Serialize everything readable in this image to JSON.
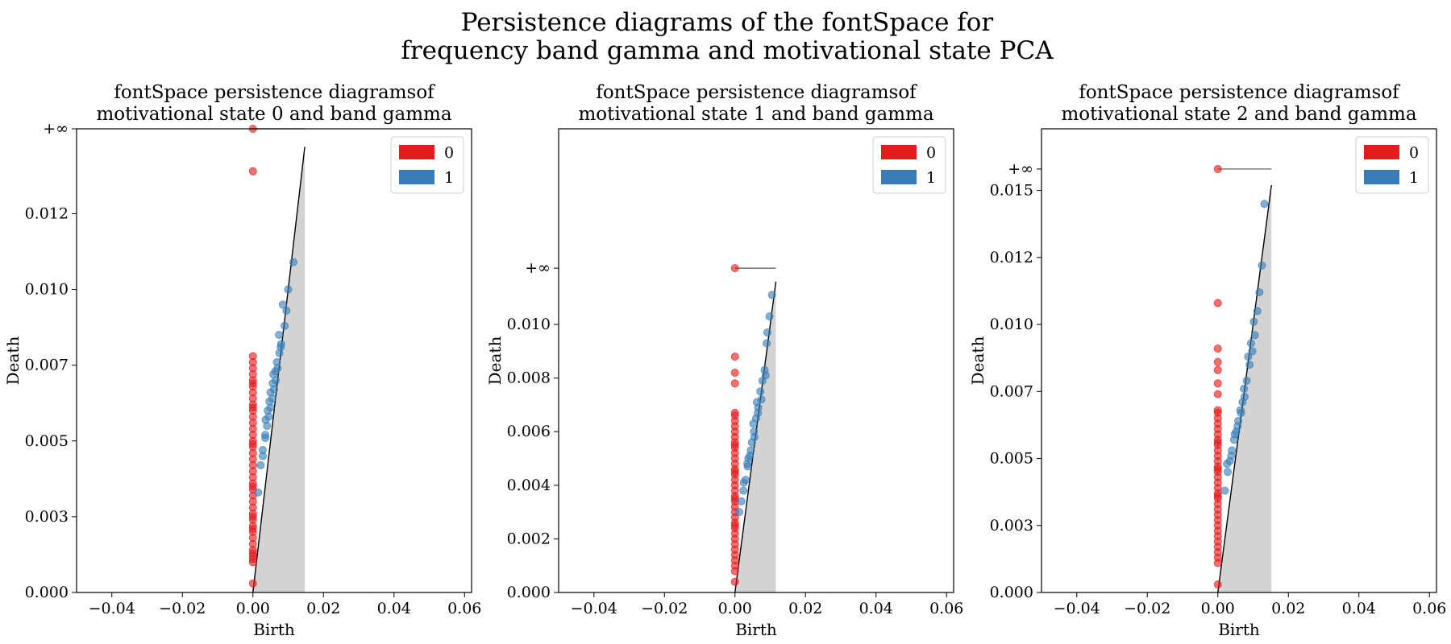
{
  "figure": {
    "title_line1": "Persistence diagrams of the fontSpace for",
    "title_line2": "frequency band gamma and motivational state PCA"
  },
  "colors": {
    "dim0": "#e41a1c",
    "dim1": "#377eb8",
    "diagonal_fill": "#d3d3d3",
    "diagonal_line": "#000000",
    "inf_line": "#555555"
  },
  "chart_data": [
    {
      "type": "scatter",
      "title_line1": "fontSpace persistence diagramsof",
      "title_line2": "motivational state 0 and band gamma",
      "xlabel": "Birth",
      "ylabel": "Death",
      "xlim": [
        -0.05,
        0.062
      ],
      "ylim": [
        0,
        0.0153
      ],
      "x_ticks": [
        -0.04,
        -0.02,
        0.0,
        0.02,
        0.04,
        0.06
      ],
      "x_tick_labels": [
        "−0.04",
        "−0.02",
        "0.00",
        "0.02",
        "0.04",
        "0.06"
      ],
      "y_ticks": [
        0.0,
        0.0025,
        0.005,
        0.0075,
        0.01,
        0.0125
      ],
      "y_tick_labels": [
        "0.000",
        "0.003",
        "0.005",
        "0.007",
        "0.010",
        "0.012"
      ],
      "inf_label": "+∞",
      "inf_value": 0.0153,
      "diag_max": 0.0147,
      "legend": {
        "placement": "top-right",
        "labels": [
          "0",
          "1"
        ]
      },
      "series": [
        {
          "name": "0",
          "x": [
            0,
            0,
            0,
            0,
            0,
            0,
            0,
            0,
            0,
            0,
            0,
            0,
            0,
            0,
            0,
            0,
            0,
            0,
            0,
            0,
            0,
            0,
            0,
            0,
            0,
            0,
            0,
            0,
            0,
            0,
            0,
            0,
            0,
            0,
            0,
            0,
            0,
            0,
            0,
            0,
            0,
            0,
            0,
            0,
            0,
            0
          ],
          "y": [
            0.0003,
            0.001,
            0.0011,
            0.0012,
            0.0014,
            0.0016,
            0.0018,
            0.002,
            0.0022,
            0.0024,
            0.0026,
            0.0028,
            0.003,
            0.0032,
            0.0034,
            0.0036,
            0.0038,
            0.004,
            0.0042,
            0.0044,
            0.0046,
            0.0048,
            0.005,
            0.0052,
            0.0054,
            0.0056,
            0.0058,
            0.006,
            0.0062,
            0.0064,
            0.0066,
            0.0068,
            0.007,
            0.0072,
            0.0074,
            0.0076,
            0.0078,
            0.0013,
            0.0021,
            0.0035,
            0.0049,
            0.0061,
            0.0069,
            0.0139,
            0.0153,
            0.0025
          ]
        },
        {
          "name": "1",
          "x": [
            0.0015,
            0.0022,
            0.0028,
            0.0035,
            0.004,
            0.0045,
            0.005,
            0.0055,
            0.006,
            0.0065,
            0.007,
            0.0075,
            0.008,
            0.0035,
            0.0042,
            0.005,
            0.0058,
            0.0068,
            0.0074,
            0.0085,
            0.0095,
            0.01,
            0.0115,
            0.0028,
            0.0036,
            0.0047,
            0.0056,
            0.0064,
            0.0079,
            0.009
          ],
          "y": [
            0.0033,
            0.0042,
            0.0047,
            0.0052,
            0.0055,
            0.0058,
            0.0061,
            0.0064,
            0.0067,
            0.007,
            0.0074,
            0.0079,
            0.0082,
            0.0051,
            0.006,
            0.0066,
            0.0072,
            0.0076,
            0.0085,
            0.0095,
            0.0093,
            0.01,
            0.0109,
            0.0045,
            0.0057,
            0.0063,
            0.0069,
            0.0073,
            0.0081,
            0.0088
          ]
        }
      ]
    },
    {
      "type": "scatter",
      "title_line1": "fontSpace persistence diagramsof",
      "title_line2": "motivational state 1 and band gamma",
      "xlabel": "Birth",
      "ylabel": "Death",
      "xlim": [
        -0.05,
        0.062
      ],
      "ylim": [
        0,
        0.0173
      ],
      "x_ticks": [
        -0.04,
        -0.02,
        0.0,
        0.02,
        0.04,
        0.06
      ],
      "x_tick_labels": [
        "−0.04",
        "−0.02",
        "0.00",
        "0.02",
        "0.04",
        "0.06"
      ],
      "y_ticks": [
        0.0,
        0.002,
        0.004,
        0.006,
        0.008,
        0.01
      ],
      "y_tick_labels": [
        "0.000",
        "0.002",
        "0.004",
        "0.006",
        "0.008",
        "0.010"
      ],
      "inf_label": "+∞",
      "inf_value": 0.0121,
      "diag_max": 0.0116,
      "legend": {
        "placement": "top-right",
        "labels": [
          "0",
          "1"
        ]
      },
      "series": [
        {
          "name": "0",
          "x": [
            0,
            0,
            0,
            0,
            0,
            0,
            0,
            0,
            0,
            0,
            0,
            0,
            0,
            0,
            0,
            0,
            0,
            0,
            0,
            0,
            0,
            0,
            0,
            0,
            0,
            0,
            0,
            0,
            0,
            0,
            0,
            0,
            0,
            0,
            0,
            0,
            0,
            0,
            0,
            0
          ],
          "y": [
            0.0004,
            0.0008,
            0.001,
            0.0012,
            0.0014,
            0.0016,
            0.0018,
            0.002,
            0.0022,
            0.0024,
            0.0026,
            0.0028,
            0.003,
            0.0032,
            0.0034,
            0.0036,
            0.0038,
            0.004,
            0.0042,
            0.0044,
            0.0046,
            0.0048,
            0.005,
            0.0052,
            0.0054,
            0.0056,
            0.0058,
            0.006,
            0.0062,
            0.0064,
            0.0066,
            0.0067,
            0.0078,
            0.0082,
            0.0088,
            0.0121,
            0.0025,
            0.0035,
            0.0045,
            0.0055
          ]
        },
        {
          "name": "1",
          "x": [
            0.0012,
            0.0018,
            0.0024,
            0.003,
            0.0036,
            0.0042,
            0.0048,
            0.0054,
            0.006,
            0.0066,
            0.0072,
            0.0078,
            0.0084,
            0.009,
            0.0098,
            0.0105,
            0.0092,
            0.0025,
            0.0035,
            0.0045,
            0.0055,
            0.0065,
            0.0075,
            0.0087,
            0.0038,
            0.0052,
            0.0062
          ],
          "y": [
            0.003,
            0.0034,
            0.0038,
            0.0042,
            0.0047,
            0.0051,
            0.0056,
            0.006,
            0.0065,
            0.0069,
            0.0075,
            0.0079,
            0.0083,
            0.0093,
            0.0103,
            0.0111,
            0.0097,
            0.0041,
            0.0048,
            0.0053,
            0.0058,
            0.0067,
            0.0072,
            0.0081,
            0.005,
            0.0063,
            0.0071
          ]
        }
      ]
    },
    {
      "type": "scatter",
      "title_line1": "fontSpace persistence diagramsof",
      "title_line2": "motivational state 2 and band gamma",
      "xlabel": "Birth",
      "ylabel": "Death",
      "xlim": [
        -0.05,
        0.062
      ],
      "ylim": [
        0,
        0.0173
      ],
      "x_ticks": [
        -0.04,
        -0.02,
        0.0,
        0.02,
        0.04,
        0.06
      ],
      "x_tick_labels": [
        "−0.04",
        "−0.02",
        "0.00",
        "0.02",
        "0.04",
        "0.06"
      ],
      "y_ticks": [
        0.0,
        0.0025,
        0.005,
        0.0075,
        0.01,
        0.0125,
        0.015
      ],
      "y_tick_labels": [
        "0.000",
        "0.003",
        "0.005",
        "0.007",
        "0.010",
        "0.012",
        "0.015"
      ],
      "inf_label": "+∞",
      "inf_value": 0.0158,
      "diag_max": 0.0152,
      "legend": {
        "placement": "top-right",
        "labels": [
          "0",
          "1"
        ]
      },
      "series": [
        {
          "name": "0",
          "x": [
            0,
            0,
            0,
            0,
            0,
            0,
            0,
            0,
            0,
            0,
            0,
            0,
            0,
            0,
            0,
            0,
            0,
            0,
            0,
            0,
            0,
            0,
            0,
            0,
            0,
            0,
            0,
            0,
            0,
            0,
            0,
            0,
            0,
            0,
            0,
            0,
            0,
            0,
            0,
            0,
            0
          ],
          "y": [
            0.0003,
            0.0011,
            0.0013,
            0.0015,
            0.0017,
            0.0019,
            0.0021,
            0.0023,
            0.0025,
            0.0027,
            0.0029,
            0.0031,
            0.0033,
            0.0035,
            0.0037,
            0.0039,
            0.0041,
            0.0043,
            0.0045,
            0.0047,
            0.0049,
            0.0051,
            0.0053,
            0.0055,
            0.0057,
            0.0059,
            0.0061,
            0.0063,
            0.0065,
            0.0067,
            0.0068,
            0.0074,
            0.0078,
            0.0083,
            0.0086,
            0.0091,
            0.0108,
            0.0158,
            0.0036,
            0.0046,
            0.0056
          ]
        },
        {
          "name": "1",
          "x": [
            0.002,
            0.0028,
            0.0034,
            0.004,
            0.0046,
            0.0052,
            0.0058,
            0.0064,
            0.007,
            0.0076,
            0.0082,
            0.009,
            0.0098,
            0.0105,
            0.0112,
            0.0118,
            0.0125,
            0.0132,
            0.0026,
            0.0038,
            0.0048,
            0.0056,
            0.0066,
            0.0074,
            0.0086,
            0.0094,
            0.0102
          ],
          "y": [
            0.0038,
            0.0045,
            0.0049,
            0.0053,
            0.0057,
            0.006,
            0.0064,
            0.0068,
            0.0071,
            0.0073,
            0.0079,
            0.0085,
            0.009,
            0.0096,
            0.0105,
            0.0112,
            0.0122,
            0.0145,
            0.0048,
            0.0051,
            0.0059,
            0.0062,
            0.0067,
            0.0076,
            0.0088,
            0.0093,
            0.0101
          ]
        }
      ]
    }
  ]
}
